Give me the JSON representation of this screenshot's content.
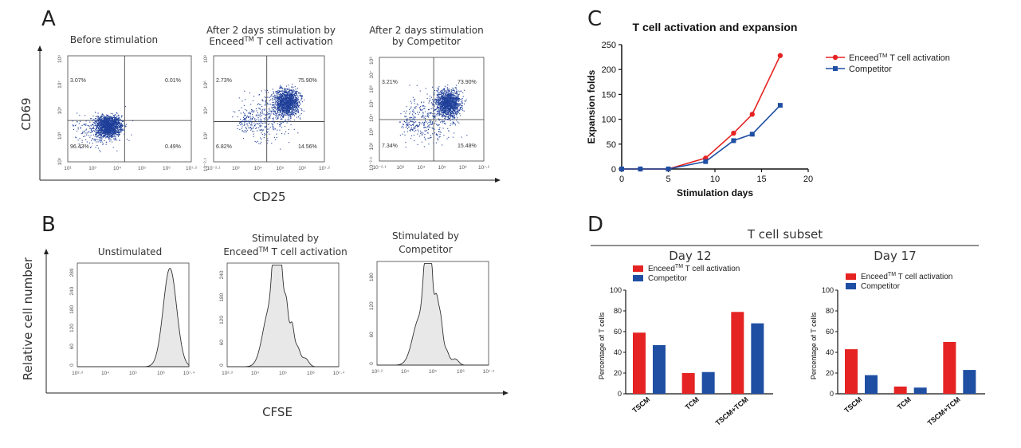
{
  "panel_labels": [
    "A",
    "B",
    "C",
    "D"
  ],
  "colors": {
    "enceed": "#e52322",
    "competitor": "#1f4fa3",
    "dots": "#1f3f99"
  },
  "panel_a": {
    "x_axis_label": "CD25",
    "y_axis_label": "CD69",
    "plots": [
      {
        "title_lines": [
          "Before stimulation"
        ],
        "quadrants": [
          "3.07%",
          "0.01%",
          "96.43%",
          "0.49%"
        ],
        "x_ticks": [
          "10¹",
          "10³",
          "10⁴",
          "10⁵",
          "10⁶",
          "10⁷·²"
        ],
        "y_ticks": [
          "10⁹",
          "10⁷",
          "10⁵",
          "10³",
          "10¹"
        ]
      },
      {
        "title_lines": [
          "After 2 days stimulation by",
          "Enceed™ T cell activation"
        ],
        "quadrants": [
          "2.73%",
          "75.90%",
          "6.82%",
          "14.56%"
        ],
        "x_ticks": [
          "10⁻²·¹",
          "10³",
          "10⁴",
          "10⁵",
          "10⁶",
          "10⁷·²"
        ],
        "y_ticks": [
          "10⁸",
          "10⁶",
          "10⁴",
          "10²",
          "10⁻²·¹"
        ]
      },
      {
        "title_lines": [
          "After 2 days stimulation",
          "by Competitor"
        ],
        "quadrants": [
          "3.21%",
          "73.90%",
          "7.34%",
          "15.48%"
        ],
        "x_ticks": [
          "10⁻²·¹",
          "10³",
          "10⁴",
          "10⁵",
          "10⁶",
          "10⁷·²"
        ],
        "y_ticks": [
          "10⁸",
          "10⁷",
          "10⁶",
          "10⁵",
          "10⁴",
          "10³",
          "10²",
          "10⁻²·¹"
        ]
      }
    ]
  },
  "panel_b": {
    "x_axis_label": "CFSE",
    "y_axis_label": "Relative cell number",
    "plots": [
      {
        "title_lines": [
          "Unstimulated"
        ],
        "y_ticks": [
          "0",
          "60",
          "120",
          "180",
          "240",
          "289"
        ],
        "x_ticks": [
          "10²·³",
          "10⁴",
          "10⁵",
          "10⁶",
          "10⁷·⁴"
        ]
      },
      {
        "title_lines": [
          "Stimulated by",
          "Enceed™ T cell activation"
        ],
        "y_ticks": [
          "0",
          "60",
          "120",
          "180",
          "240"
        ],
        "x_ticks": [
          "10²·³",
          "10⁴",
          "10⁵",
          "10⁶",
          "10⁷·⁴"
        ]
      },
      {
        "title_lines": [
          "Stimulated by",
          "Competitor"
        ],
        "y_ticks": [
          "0",
          "60",
          "120",
          "180"
        ],
        "x_ticks": [
          "10²·³",
          "10⁴",
          "10⁵",
          "10⁶",
          "10⁷·⁴"
        ]
      }
    ]
  },
  "chart_data": [
    {
      "type": "line",
      "title": "T cell activation and expansion",
      "xlabel": "Stimulation days",
      "ylabel": "Expansion folds",
      "xlim": [
        0,
        20
      ],
      "ylim": [
        0,
        250
      ],
      "x_ticks": [
        0,
        5,
        10,
        15,
        20
      ],
      "y_ticks": [
        0,
        50,
        100,
        150,
        200,
        250
      ],
      "legend_position": "right",
      "series": [
        {
          "name": "Enceed™ T cell activation",
          "x": [
            0,
            2,
            5,
            9,
            12,
            14,
            17
          ],
          "y": [
            0,
            0,
            0,
            22,
            72,
            110,
            228
          ]
        },
        {
          "name": "Competitor",
          "x": [
            0,
            2,
            5,
            9,
            12,
            14,
            17
          ],
          "y": [
            0,
            0,
            0,
            15,
            57,
            70,
            128
          ]
        }
      ]
    },
    {
      "type": "bar",
      "title": "Day 12",
      "group_title": "T cell subset",
      "ylabel": "Percentage of T cells",
      "ylim": [
        0,
        100
      ],
      "y_ticks": [
        0,
        20,
        40,
        60,
        80,
        100
      ],
      "categories": [
        "TSCM",
        "TCM",
        "TSCM+TCM"
      ],
      "series": [
        {
          "name": "Enceed™ T cell activation",
          "values": [
            59,
            20,
            79
          ]
        },
        {
          "name": "Competitor",
          "values": [
            47,
            21,
            68
          ]
        }
      ]
    },
    {
      "type": "bar",
      "title": "Day 17",
      "group_title": "T cell subset",
      "ylabel": "Percentage of T cells",
      "ylim": [
        0,
        100
      ],
      "y_ticks": [
        0,
        20,
        40,
        60,
        80,
        100
      ],
      "categories": [
        "TSCM",
        "TCM",
        "TSCM+TCM"
      ],
      "series": [
        {
          "name": "Enceed™ T cell activation",
          "values": [
            43,
            7,
            50
          ]
        },
        {
          "name": "Competitor",
          "values": [
            18,
            6,
            23
          ]
        }
      ]
    }
  ]
}
